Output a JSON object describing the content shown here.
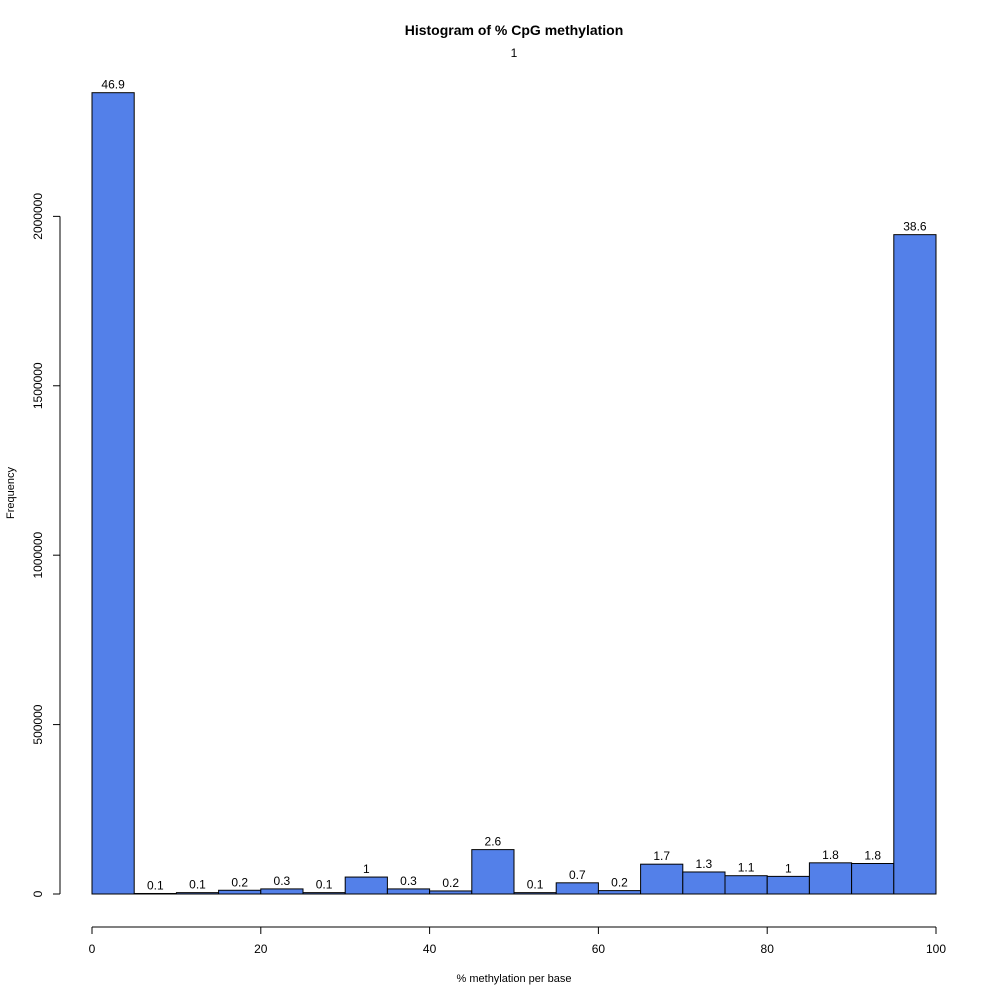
{
  "chart_data": {
    "type": "bar",
    "title": "Histogram of % CpG methylation",
    "subtitle": "1",
    "xlabel": "% methylation per base",
    "ylabel": "Frequency",
    "bar_color": "#5380E9",
    "xlim": [
      0,
      100
    ],
    "ylim": [
      0,
      2370000
    ],
    "x_ticks": [
      0,
      20,
      40,
      60,
      80,
      100
    ],
    "y_ticks": [
      0,
      500000,
      1000000,
      1500000,
      2000000
    ],
    "bins": [
      {
        "start": 0,
        "end": 5,
        "value": 2365000,
        "label": "46.9"
      },
      {
        "start": 5,
        "end": 10,
        "value": 1500,
        "label": "0.1"
      },
      {
        "start": 10,
        "end": 15,
        "value": 4000,
        "label": "0.1"
      },
      {
        "start": 15,
        "end": 20,
        "value": 11000,
        "label": "0.2"
      },
      {
        "start": 20,
        "end": 25,
        "value": 15000,
        "label": "0.3"
      },
      {
        "start": 25,
        "end": 30,
        "value": 4000,
        "label": "0.1"
      },
      {
        "start": 30,
        "end": 35,
        "value": 50000,
        "label": "1"
      },
      {
        "start": 35,
        "end": 40,
        "value": 15000,
        "label": "0.3"
      },
      {
        "start": 40,
        "end": 45,
        "value": 9000,
        "label": "0.2"
      },
      {
        "start": 45,
        "end": 50,
        "value": 131000,
        "label": "2.6"
      },
      {
        "start": 50,
        "end": 55,
        "value": 4000,
        "label": "0.1"
      },
      {
        "start": 55,
        "end": 60,
        "value": 33000,
        "label": "0.7"
      },
      {
        "start": 60,
        "end": 65,
        "value": 10000,
        "label": "0.2"
      },
      {
        "start": 65,
        "end": 70,
        "value": 88000,
        "label": "1.7"
      },
      {
        "start": 70,
        "end": 75,
        "value": 65000,
        "label": "1.3"
      },
      {
        "start": 75,
        "end": 80,
        "value": 54000,
        "label": "1.1"
      },
      {
        "start": 80,
        "end": 85,
        "value": 52000,
        "label": "1"
      },
      {
        "start": 85,
        "end": 90,
        "value": 92000,
        "label": "1.8"
      },
      {
        "start": 90,
        "end": 95,
        "value": 90000,
        "label": "1.8"
      },
      {
        "start": 95,
        "end": 100,
        "value": 1946000,
        "label": "38.6"
      }
    ]
  }
}
